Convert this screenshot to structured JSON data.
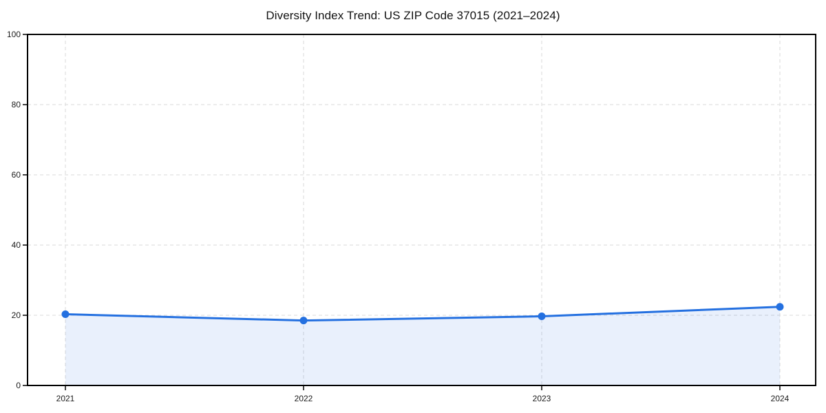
{
  "chart_data": {
    "type": "area",
    "title": "Diversity Index Trend: US ZIP Code 37015 (2021–2024)",
    "categories": [
      "2021",
      "2022",
      "2023",
      "2024"
    ],
    "values": [
      20.3,
      18.5,
      19.7,
      22.4
    ],
    "xlabel": "",
    "ylabel": "",
    "ylim": [
      0,
      100
    ],
    "yticks": [
      0,
      20,
      40,
      60,
      80,
      100
    ],
    "grid": true,
    "legend_position": "none",
    "colors": {
      "line": "#2470e0",
      "area_opacity": 0.1,
      "grid": "#e0e0e0",
      "axis": "#000000",
      "tick_text": "#1a1a1a",
      "background": "#ffffff"
    }
  }
}
